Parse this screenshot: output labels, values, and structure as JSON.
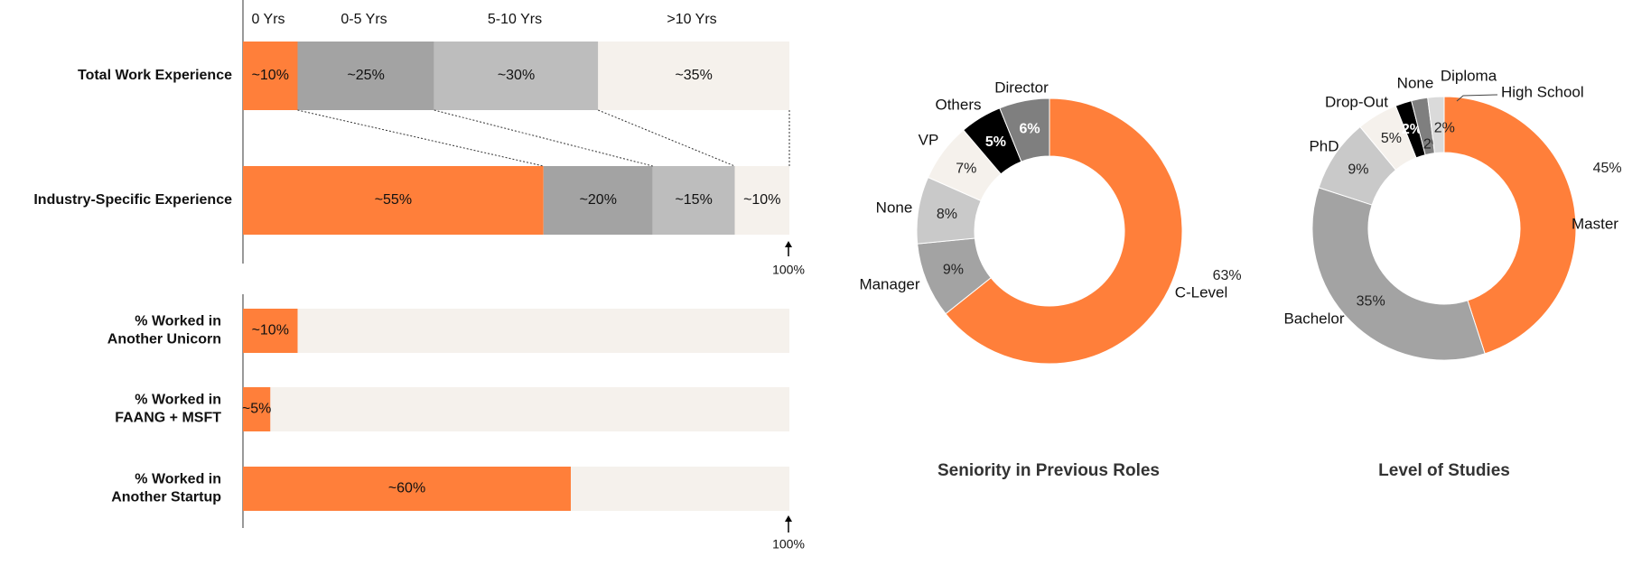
{
  "colors": {
    "orange": "#FF7F3A",
    "dark_gray": "#A3A3A3",
    "mid_gray": "#BDBDBD",
    "light_gray": "#C9C9C9",
    "beige": "#F5F1EC",
    "black": "#000000",
    "gray_6": "#7F7F7F"
  },
  "chart_data": [
    {
      "type": "bar",
      "orientation": "horizontal-stacked",
      "column_headers": [
        "0 Yrs",
        "0-5 Yrs",
        "5-10 Yrs",
        ">10 Yrs"
      ],
      "categories": [
        "Total Work Experience",
        "Industry-Specific Experience"
      ],
      "series": [
        {
          "name": "0 Yrs",
          "values": [
            10,
            55
          ],
          "labels": [
            "~10%",
            "~55%"
          ]
        },
        {
          "name": "0-5 Yrs",
          "values": [
            25,
            20
          ],
          "labels": [
            "~25%",
            "~20%"
          ]
        },
        {
          "name": "5-10 Yrs",
          "values": [
            30,
            15
          ],
          "labels": [
            "~30%",
            "~15%"
          ]
        },
        {
          "name": ">10 Yrs",
          "values": [
            35,
            10
          ],
          "labels": [
            "~35%",
            "~10%"
          ]
        }
      ],
      "xlim": [
        0,
        100
      ],
      "end_marker_label": "100%"
    },
    {
      "type": "bar",
      "orientation": "horizontal",
      "categories": [
        [
          "% Worked in",
          "Another Unicorn"
        ],
        [
          "% Worked in",
          "FAANG + MSFT"
        ],
        [
          "% Worked in",
          "Another Startup"
        ]
      ],
      "values": [
        10,
        5,
        60
      ],
      "labels": [
        "~10%",
        "~5%",
        "~60%"
      ],
      "xlim": [
        0,
        100
      ],
      "end_marker_label": "100%"
    },
    {
      "type": "pie",
      "style": "donut",
      "title": "Seniority in Previous Roles",
      "slices": [
        {
          "name": "C-Level",
          "value": 63,
          "label": "63%"
        },
        {
          "name": "Manager",
          "value": 9,
          "label": "9%"
        },
        {
          "name": "None",
          "value": 8,
          "label": "8%"
        },
        {
          "name": "VP",
          "value": 7,
          "label": "7%"
        },
        {
          "name": "Others",
          "value": 5,
          "label": "5%"
        },
        {
          "name": "Director",
          "value": 6,
          "label": "6%"
        }
      ]
    },
    {
      "type": "pie",
      "style": "donut",
      "title": "Level of Studies",
      "slices": [
        {
          "name": "Master",
          "value": 45,
          "label": "45%"
        },
        {
          "name": "Bachelor",
          "value": 35,
          "label": "35%"
        },
        {
          "name": "PhD",
          "value": 9,
          "label": "9%"
        },
        {
          "name": "Drop-Out",
          "value": 5,
          "label": "5%"
        },
        {
          "name": "None",
          "value": 2,
          "label": "2%"
        },
        {
          "name": "Diploma",
          "value": 2,
          "label": "2%"
        },
        {
          "name": "High School",
          "value": 2,
          "label": "2%"
        }
      ]
    }
  ]
}
